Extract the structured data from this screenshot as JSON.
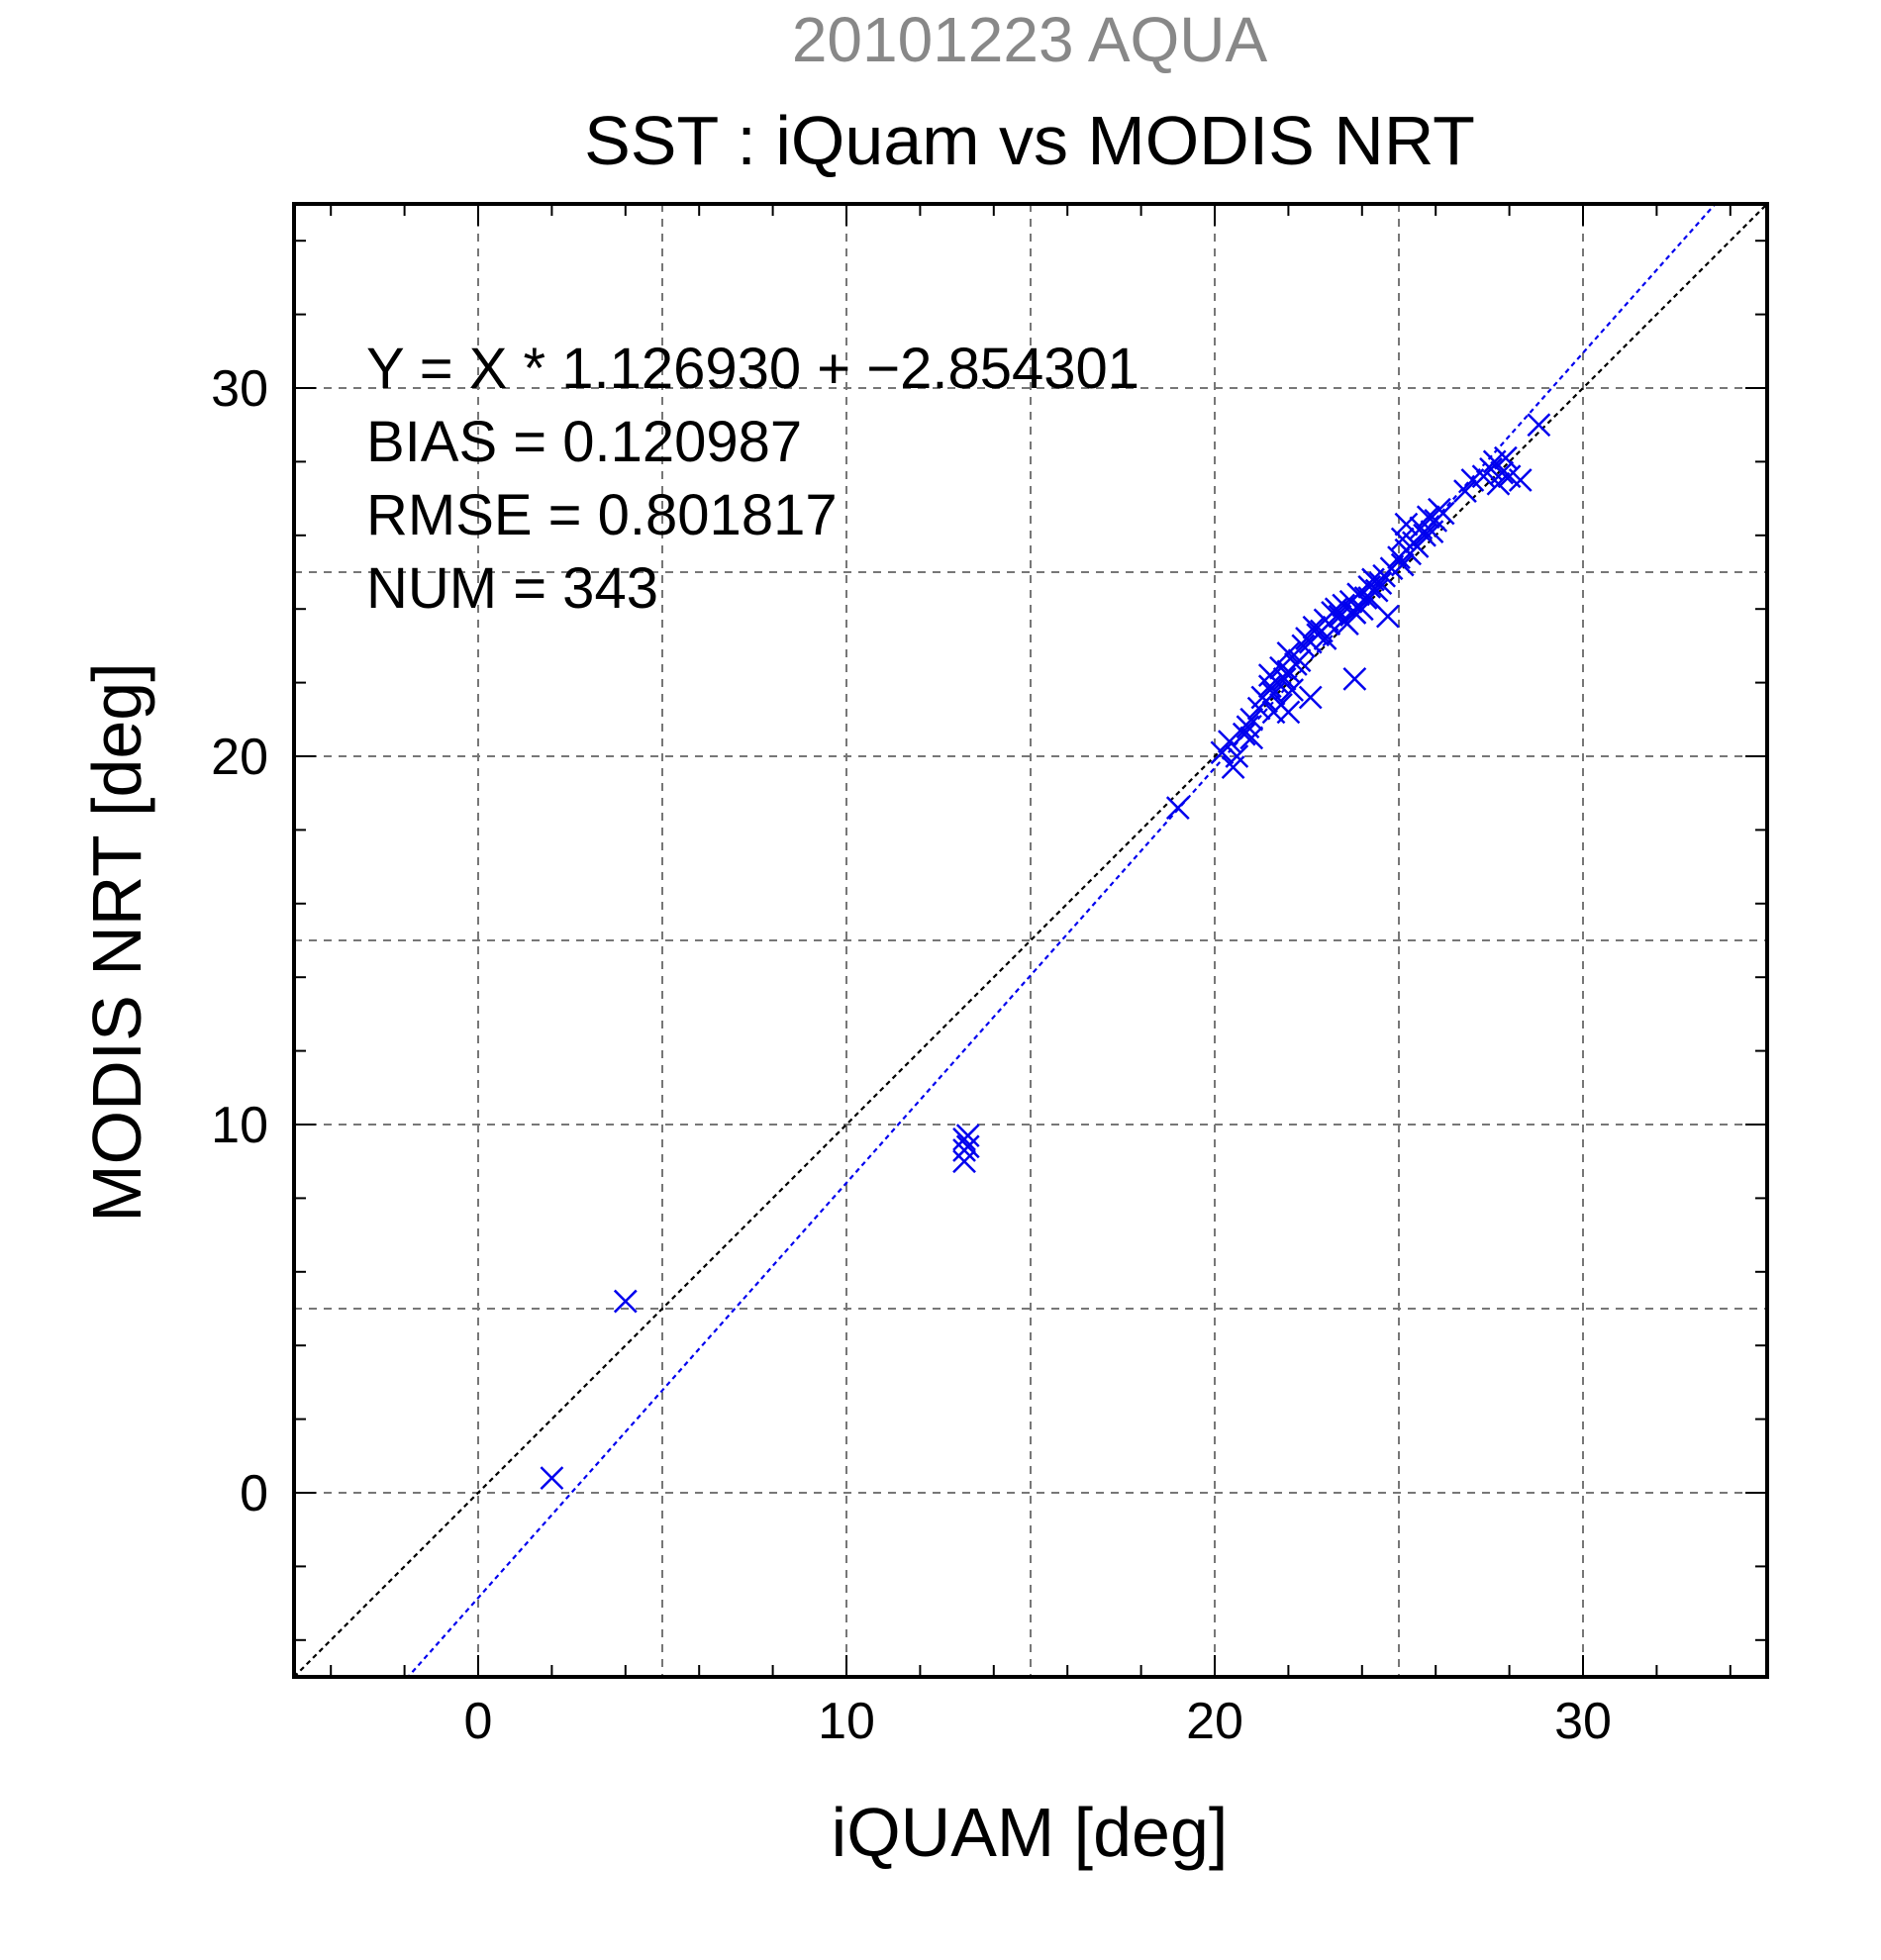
{
  "chart_data": {
    "type": "scatter",
    "supertitle": "20101223 AQUA",
    "title": "SST : iQuam vs MODIS NRT",
    "xlabel": "iQUAM [deg]",
    "ylabel": "MODIS NRT [deg]",
    "xlim": [
      -5,
      35
    ],
    "ylim": [
      -5,
      35
    ],
    "xticks": [
      0,
      10,
      20,
      30
    ],
    "yticks": [
      0,
      10,
      20,
      30
    ],
    "grid": true,
    "stats": {
      "equation": "Y = X * 1.126930 + −2.854301",
      "bias": "BIAS = 0.120987",
      "rmse": "RMSE = 0.801817",
      "num": "NUM = 343"
    },
    "lines": [
      {
        "kind": "one-to-one",
        "slope": 1.0,
        "intercept": 0.0,
        "color": "#000000"
      },
      {
        "kind": "regression",
        "slope": 1.12693,
        "intercept": -2.854301,
        "color": "#0000ee"
      }
    ],
    "marker_color": "#0000ee",
    "series": [
      {
        "x": [
          2.0,
          4.0,
          13.2,
          13.3,
          13.2,
          13.3,
          13.2,
          19.0,
          20.2,
          20.4,
          20.6,
          20.8,
          20.5,
          21.0,
          21.2,
          20.9,
          21.3,
          21.4,
          21.5,
          21.6,
          21.7,
          21.8,
          21.6,
          21.9,
          22.0,
          22.1,
          21.5,
          22.2,
          22.3,
          22.0,
          22.4,
          22.5,
          21.8,
          22.6,
          22.7,
          22.8,
          22.9,
          23.0,
          23.1,
          23.2,
          23.0,
          23.3,
          23.4,
          23.5,
          23.6,
          23.7,
          23.8,
          23.9,
          24.0,
          23.5,
          24.1,
          24.2,
          24.3,
          23.8,
          24.4,
          24.5,
          24.6,
          24.2,
          24.8,
          25.0,
          25.1,
          25.2,
          25.3,
          25.1,
          25.5,
          25.6,
          25.4,
          25.7,
          25.8,
          26.0,
          26.1,
          25.9,
          26.2,
          26.8,
          27.0,
          27.3,
          27.5,
          27.6,
          27.8,
          27.9,
          28.0,
          27.7,
          28.3,
          28.8,
          23.8,
          22.0,
          21.0,
          22.6,
          24.7,
          25.2
        ],
        "y": [
          0.4,
          5.2,
          9.6,
          9.4,
          9.0,
          9.7,
          9.3,
          18.6,
          20.1,
          20.4,
          20.0,
          20.6,
          19.7,
          21.0,
          21.3,
          20.8,
          21.6,
          21.5,
          21.9,
          21.7,
          22.0,
          21.4,
          21.2,
          22.1,
          22.3,
          21.8,
          22.2,
          22.5,
          22.6,
          22.8,
          23.0,
          23.2,
          22.4,
          23.1,
          23.5,
          23.3,
          23.4,
          23.7,
          23.6,
          23.9,
          23.2,
          24.0,
          23.8,
          24.1,
          23.6,
          24.2,
          23.9,
          24.4,
          24.0,
          23.7,
          24.3,
          24.6,
          24.8,
          23.9,
          24.5,
          24.7,
          24.9,
          24.3,
          25.1,
          25.4,
          25.2,
          25.6,
          25.5,
          25.9,
          25.7,
          26.2,
          25.8,
          26.0,
          26.5,
          26.4,
          26.7,
          26.1,
          26.6,
          27.2,
          27.5,
          27.6,
          27.8,
          28.0,
          27.7,
          28.1,
          27.6,
          27.4,
          27.5,
          29.0,
          22.1,
          21.2,
          20.5,
          21.6,
          23.8,
          26.3
        ]
      }
    ]
  }
}
